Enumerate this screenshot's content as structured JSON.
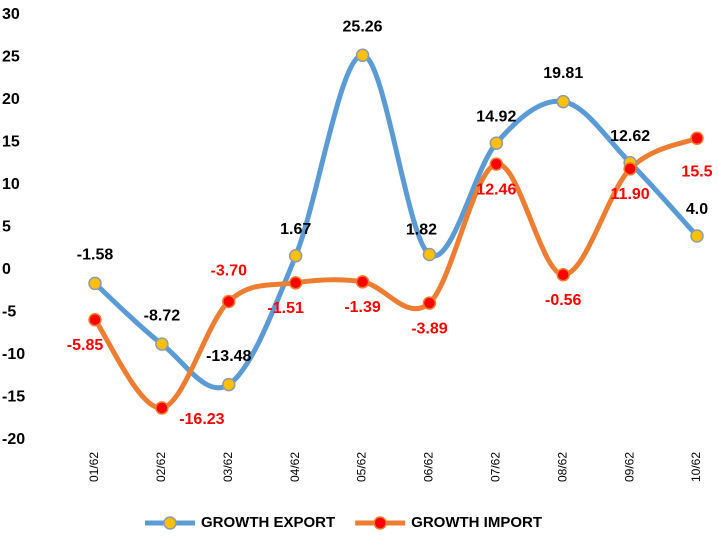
{
  "chart_data": {
    "type": "line",
    "categories": [
      "01/62",
      "02/62",
      "03/62",
      "04/62",
      "05/62",
      "06/62",
      "07/62",
      "08/62",
      "09/62",
      "10/62"
    ],
    "series": [
      {
        "name": "GROWTH EXPORT",
        "color": "#5b9bd5",
        "marker_color": "#ffc000",
        "label_color": "#000000",
        "values": [
          -1.58,
          -8.72,
          -13.48,
          1.67,
          25.26,
          1.82,
          14.92,
          19.81,
          12.62,
          4.0
        ],
        "value_labels": [
          "-1.58",
          "-8.72",
          "-13.48",
          "1.67",
          "25.26",
          "1.82",
          "14.92",
          "19.81",
          "12.62",
          "4.0"
        ]
      },
      {
        "name": "GROWTH IMPORT",
        "color": "#ed7d31",
        "marker_color": "#ff0000",
        "label_color": "#ff0000",
        "values": [
          -5.85,
          -16.23,
          -3.7,
          -1.51,
          -1.39,
          -3.89,
          12.46,
          -0.56,
          11.9,
          15.5
        ],
        "value_labels": [
          "-5.85",
          "-16.23",
          "-3.70",
          "-1.51",
          "-1.39",
          "-3.89",
          "12.46",
          "-0.56",
          "11.90",
          "15.5"
        ]
      }
    ],
    "ylim": [
      -20,
      30
    ],
    "yticks": [
      -20,
      -15,
      -10,
      -5,
      0,
      5,
      10,
      15,
      20,
      25,
      30
    ],
    "grid": false,
    "legend": "bottom"
  }
}
